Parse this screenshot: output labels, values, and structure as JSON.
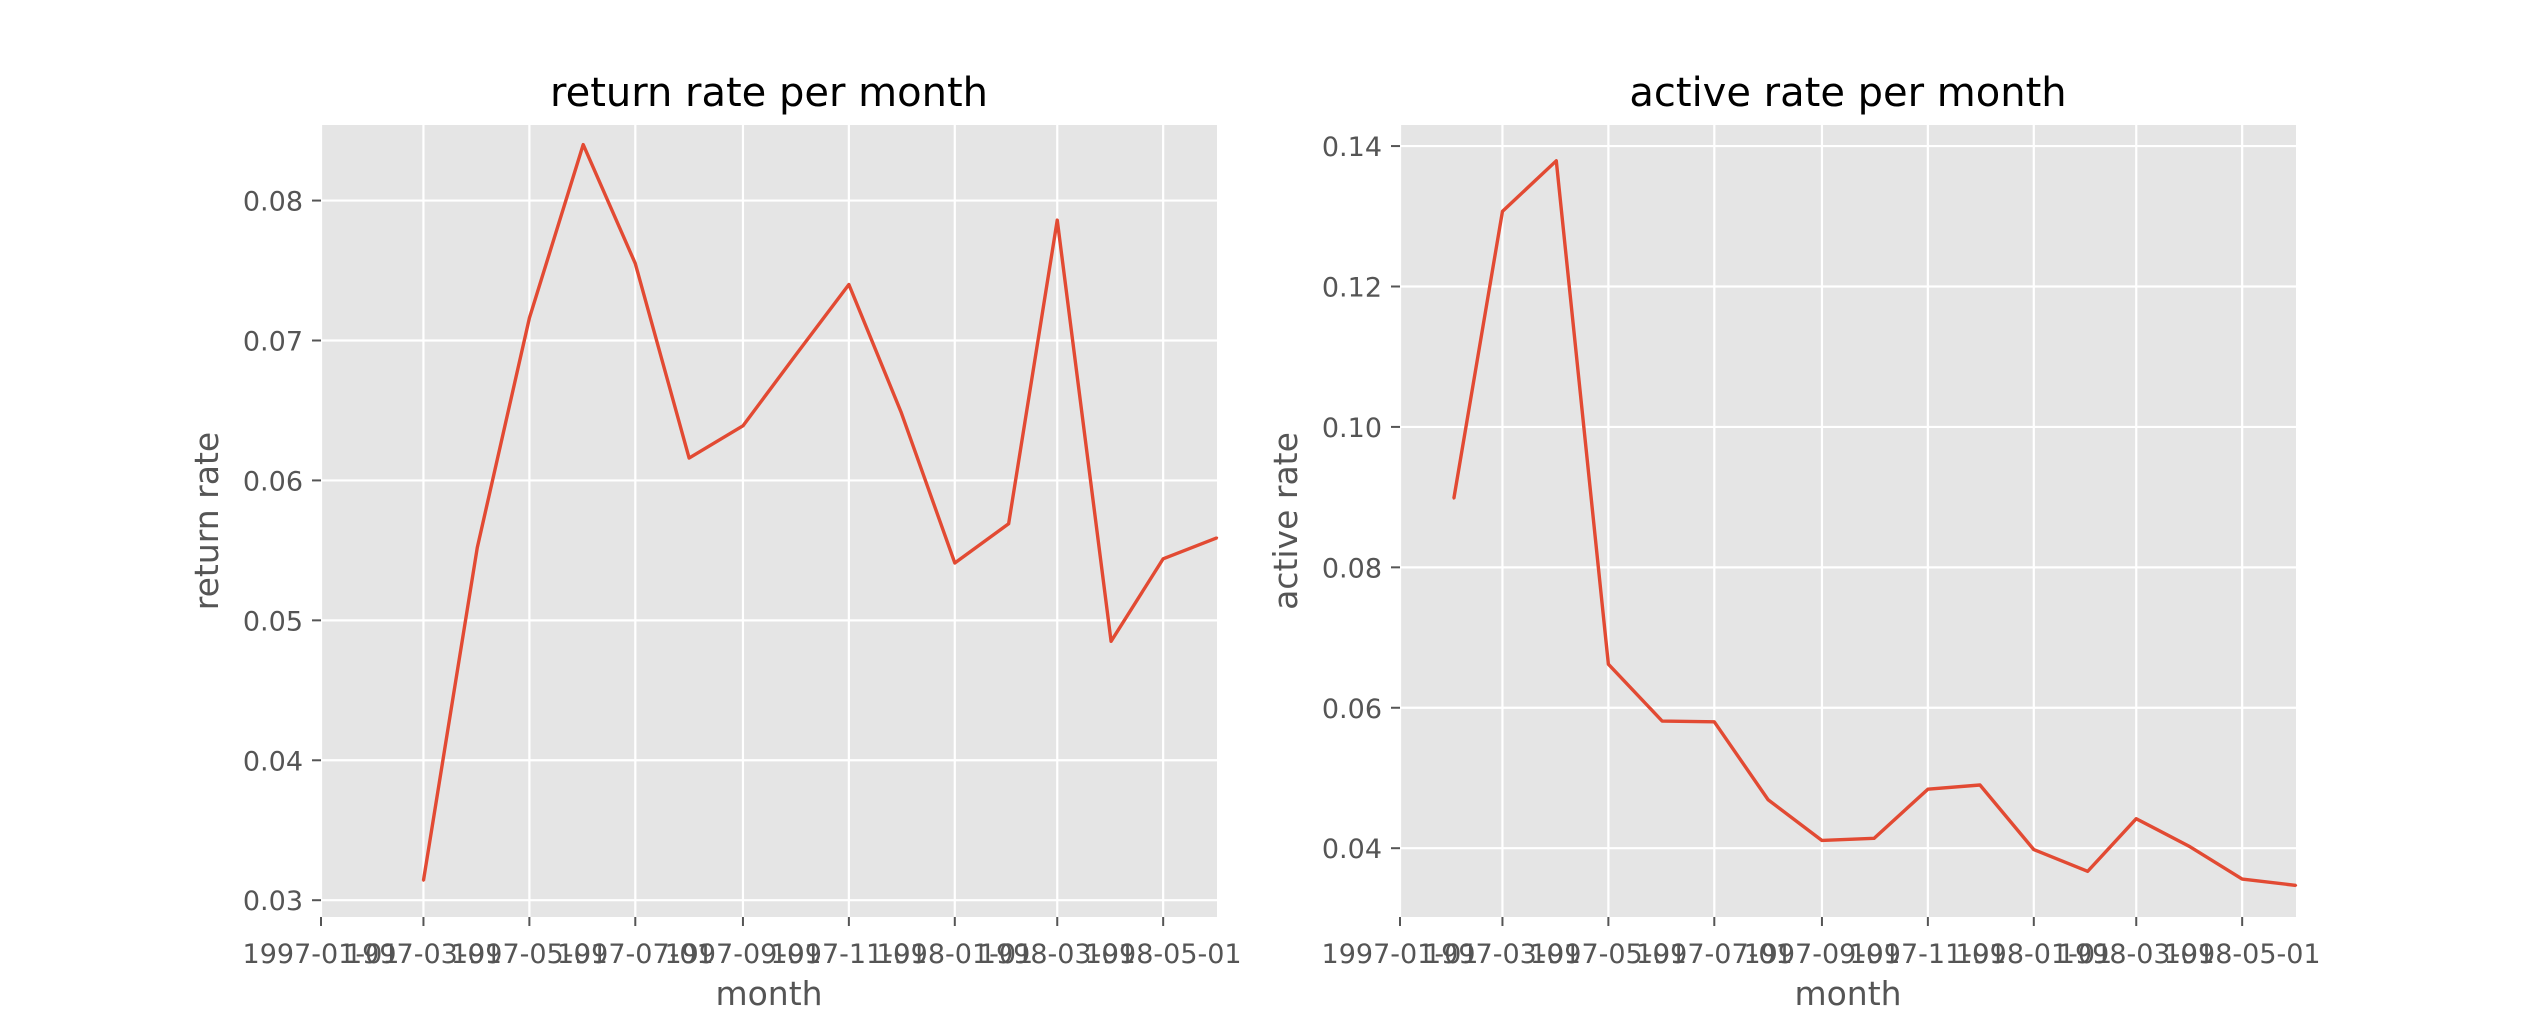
{
  "chart_data": [
    {
      "type": "line",
      "title": "return rate per month",
      "xlabel": "month",
      "ylabel": "return rate",
      "xlim": [
        "1997-01-01",
        "1998-06-01"
      ],
      "ylim": [
        0.0288,
        0.0854
      ],
      "grid": true,
      "xticks": [
        "1997-01-01",
        "1997-03-01",
        "1997-05-01",
        "1997-07-01",
        "1997-09-01",
        "1997-11-01",
        "1998-01-01",
        "1998-03-01",
        "1998-05-01"
      ],
      "yticks": [
        0.03,
        0.04,
        0.05,
        0.06,
        0.07,
        0.08
      ],
      "series": [
        {
          "color": "#e24a33",
          "x": [
            "1997-03-01",
            "1997-04-01",
            "1997-05-01",
            "1997-06-01",
            "1997-07-01",
            "1997-08-01",
            "1997-09-01",
            "1997-10-01",
            "1997-11-01",
            "1997-12-01",
            "1998-01-01",
            "1998-02-01",
            "1998-03-01",
            "1998-04-01",
            "1998-05-01",
            "1998-06-01"
          ],
          "y": [
            0.0314,
            0.0552,
            0.0716,
            0.084,
            0.0755,
            0.0616,
            0.0639,
            0.0689,
            0.074,
            0.0649,
            0.0541,
            0.0569,
            0.0786,
            0.0485,
            0.0544,
            0.0559
          ]
        }
      ]
    },
    {
      "type": "line",
      "title": "active rate per month",
      "xlabel": "month",
      "ylabel": "active rate",
      "xlim": [
        "1997-01-01",
        "1998-06-01"
      ],
      "ylim": [
        0.0302,
        0.143
      ],
      "grid": true,
      "xticks": [
        "1997-01-01",
        "1997-03-01",
        "1997-05-01",
        "1997-07-01",
        "1997-09-01",
        "1997-11-01",
        "1998-01-01",
        "1998-03-01",
        "1998-05-01"
      ],
      "yticks": [
        0.04,
        0.06,
        0.08,
        0.1,
        0.12,
        0.14
      ],
      "series": [
        {
          "color": "#e24a33",
          "x": [
            "1997-02-01",
            "1997-03-01",
            "1997-04-01",
            "1997-05-01",
            "1997-06-01",
            "1997-07-01",
            "1997-08-01",
            "1997-09-01",
            "1997-10-01",
            "1997-11-01",
            "1997-12-01",
            "1998-01-01",
            "1998-02-01",
            "1998-03-01",
            "1998-04-01",
            "1998-05-01",
            "1998-06-01"
          ],
          "y": [
            0.0898,
            0.1307,
            0.1379,
            0.0662,
            0.0581,
            0.058,
            0.0469,
            0.0411,
            0.0414,
            0.0484,
            0.049,
            0.0398,
            0.0367,
            0.0442,
            0.0402,
            0.0356,
            0.0347
          ]
        }
      ]
    }
  ]
}
